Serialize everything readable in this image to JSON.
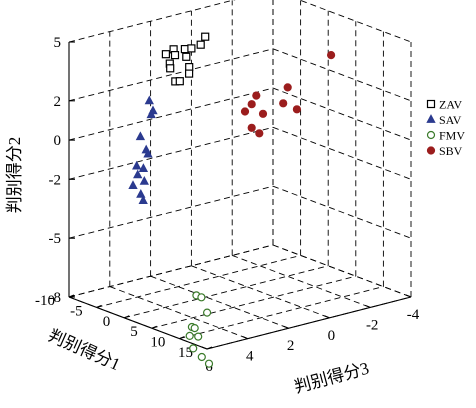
{
  "chart_data": {
    "type": "scatter",
    "title": "",
    "xlabel": "判别得分1",
    "ylabel": "判别得分3",
    "zlabel": "判别得分2",
    "xlim": [
      -10,
      15
    ],
    "ylim": [
      -4,
      6
    ],
    "zlim": [
      -8,
      5
    ],
    "xticks": [
      "-10",
      "-5",
      "0",
      "5",
      "10",
      "15"
    ],
    "yticks": [
      "6",
      "4",
      "2",
      "0",
      "-2",
      "-4"
    ],
    "zticks": [
      "5",
      "2",
      "0",
      "-2",
      "-5",
      "-8"
    ],
    "grid": true,
    "legend_position": "right",
    "series": [
      {
        "name": "ZAV",
        "marker": "square-open",
        "color": "#000000",
        "points": [
          [
            -2.8,
            3.2,
            4.4
          ],
          [
            -2.5,
            2.9,
            4.6
          ],
          [
            -2.3,
            2.4,
            4.5
          ],
          [
            -2.6,
            2.0,
            4.4
          ],
          [
            -2.4,
            1.6,
            4.5
          ],
          [
            -2.7,
            1.3,
            4.8
          ],
          [
            -3.0,
            2.7,
            4.2
          ],
          [
            -2.8,
            2.2,
            4.0
          ],
          [
            -3.2,
            2.9,
            3.8
          ],
          [
            -3.0,
            2.0,
            3.4
          ],
          [
            -3.5,
            2.8,
            3.5
          ],
          [
            -3.3,
            2.6,
            2.8
          ],
          [
            -3.6,
            2.3,
            2.7
          ],
          [
            -3.4,
            1.9,
            3.0
          ]
        ]
      },
      {
        "name": "SAV",
        "marker": "triangle-filled",
        "color": "#2b3a8f",
        "points": [
          [
            -5.8,
            3.2,
            1.7
          ],
          [
            -5.5,
            3.1,
            1.2
          ],
          [
            -6.2,
            3.0,
            0.9
          ],
          [
            -6.3,
            3.5,
            -0.1
          ],
          [
            -6.0,
            3.3,
            -0.8
          ],
          [
            -6.4,
            3.1,
            -1.1
          ],
          [
            -6.6,
            3.6,
            -1.6
          ],
          [
            -6.5,
            3.3,
            -1.8
          ],
          [
            -6.8,
            3.5,
            -2.1
          ],
          [
            -6.7,
            3.2,
            -2.5
          ],
          [
            -6.9,
            3.7,
            -2.6
          ],
          [
            -6.6,
            3.4,
            -3.1
          ],
          [
            -6.9,
            3.2,
            -3.5
          ]
        ]
      },
      {
        "name": "FMV",
        "marker": "circle-open",
        "color": "#3a7a2a",
        "points": [
          [
            -0.6,
            2.3,
            -7.9
          ],
          [
            -0.8,
            2.0,
            -8.1
          ],
          [
            -0.5,
            1.8,
            -8.9
          ],
          [
            -0.3,
            2.6,
            -9.4
          ],
          [
            -0.9,
            2.3,
            -9.6
          ],
          [
            -0.7,
            2.6,
            -9.9
          ],
          [
            -1.0,
            2.1,
            -10.1
          ],
          [
            -0.8,
            2.4,
            -10.6
          ],
          [
            -1.1,
            1.9,
            -11.2
          ],
          [
            -0.9,
            1.6,
            -11.6
          ]
        ]
      },
      {
        "name": "SBV",
        "marker": "circle-filled",
        "color": "#9b1d1d",
        "points": [
          [
            -1.2,
            -0.8,
            1.4
          ],
          [
            -1.3,
            -0.6,
            1.0
          ],
          [
            -1.1,
            -1.1,
            0.4
          ],
          [
            -1.4,
            -0.3,
            0.7
          ],
          [
            -1.3,
            -0.6,
            -0.2
          ],
          [
            -1.4,
            -1.0,
            -0.6
          ],
          [
            -1.5,
            -2.2,
            0.6
          ],
          [
            -1.8,
            -2.5,
            1.3
          ],
          [
            -1.6,
            -2.9,
            0.1
          ],
          [
            -1.7,
            -4.6,
            2.4
          ]
        ]
      }
    ]
  }
}
